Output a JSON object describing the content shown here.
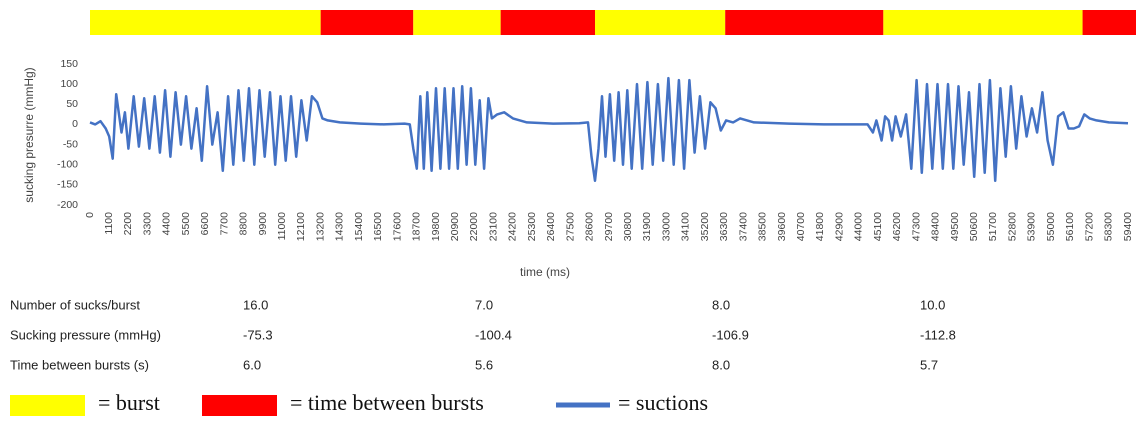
{
  "chart_data": {
    "type": "line",
    "ylabel": "sucking presurre (mmHg)",
    "xlabel": "time (ms)",
    "xlim": [
      0,
      59400
    ],
    "ylim": [
      -200,
      150
    ],
    "yticks": [
      -200,
      -150,
      -100,
      -50,
      0,
      50,
      100,
      150
    ],
    "xticks": [
      0,
      1100,
      2200,
      3300,
      4400,
      5500,
      6600,
      7700,
      8800,
      9900,
      11000,
      12100,
      13200,
      14300,
      15400,
      16500,
      17600,
      18700,
      19800,
      20900,
      22000,
      23100,
      24200,
      25300,
      26400,
      27500,
      28600,
      29700,
      30800,
      31900,
      33000,
      34100,
      35200,
      36300,
      37400,
      38500,
      39600,
      40700,
      41800,
      42900,
      44000,
      45100,
      46200,
      47300,
      48400,
      49500,
      50600,
      51700,
      52800,
      53900,
      55000,
      56100,
      57200,
      58300,
      59400
    ],
    "grid": false,
    "bands": [
      {
        "from": 0,
        "to": 13200,
        "color": "#ffff00"
      },
      {
        "from": 13200,
        "to": 18500,
        "color": "#ff0000"
      },
      {
        "from": 18500,
        "to": 23500,
        "color": "#ffff00"
      },
      {
        "from": 23500,
        "to": 28900,
        "color": "#ff0000"
      },
      {
        "from": 28900,
        "to": 36350,
        "color": "#ffff00"
      },
      {
        "from": 36350,
        "to": 45400,
        "color": "#ff0000"
      },
      {
        "from": 45400,
        "to": 56800,
        "color": "#ffff00"
      },
      {
        "from": 56800,
        "to": 59900,
        "color": "#ff0000"
      }
    ],
    "series": [
      {
        "name": "= suctions",
        "color": "#4472c4",
        "x": [
          0,
          300,
          600,
          900,
          1100,
          1300,
          1500,
          1800,
          2000,
          2200,
          2500,
          2800,
          3100,
          3400,
          3700,
          4000,
          4300,
          4600,
          4900,
          5200,
          5500,
          5800,
          6100,
          6400,
          6700,
          7000,
          7300,
          7600,
          7900,
          8200,
          8500,
          8800,
          9100,
          9400,
          9700,
          10000,
          10300,
          10600,
          10900,
          11200,
          11500,
          11800,
          12100,
          12400,
          12700,
          13000,
          13300,
          13600,
          14300,
          15500,
          16800,
          18000,
          18300,
          18500,
          18700,
          18900,
          19100,
          19300,
          19550,
          19800,
          20050,
          20300,
          20550,
          20800,
          21050,
          21300,
          21550,
          21800,
          22050,
          22300,
          22550,
          22800,
          23000,
          23300,
          23700,
          24200,
          25000,
          26500,
          28000,
          28500,
          28700,
          28900,
          29100,
          29300,
          29500,
          29750,
          30000,
          30250,
          30500,
          30750,
          31000,
          31300,
          31600,
          31900,
          32200,
          32500,
          32800,
          33100,
          33400,
          33700,
          34000,
          34300,
          34600,
          34900,
          35200,
          35500,
          35800,
          36100,
          36400,
          36800,
          37200,
          38000,
          40000,
          42000,
          44500,
          44800,
          45000,
          45300,
          45500,
          45700,
          45900,
          46100,
          46400,
          46700,
          47000,
          47300,
          47600,
          47900,
          48200,
          48500,
          48800,
          49100,
          49400,
          49700,
          50000,
          50300,
          50600,
          50900,
          51200,
          51500,
          51800,
          52100,
          52400,
          52700,
          53000,
          53300,
          53600,
          53900,
          54200,
          54500,
          54800,
          55100,
          55400,
          55700,
          56000,
          56300,
          56600,
          56900,
          57200,
          57600,
          58300,
          59400
        ],
        "values": [
          5,
          0,
          8,
          -10,
          -30,
          -85,
          75,
          -20,
          30,
          -60,
          70,
          -55,
          65,
          -60,
          70,
          -70,
          85,
          -80,
          80,
          -50,
          70,
          -60,
          40,
          -90,
          95,
          -50,
          30,
          -115,
          70,
          -100,
          85,
          -90,
          90,
          -100,
          85,
          -80,
          80,
          -100,
          70,
          -90,
          70,
          -80,
          60,
          -40,
          70,
          55,
          15,
          10,
          5,
          2,
          0,
          2,
          0,
          -60,
          -110,
          70,
          -110,
          80,
          -115,
          90,
          -110,
          90,
          -110,
          90,
          -110,
          95,
          -100,
          90,
          -100,
          60,
          -110,
          65,
          15,
          25,
          30,
          15,
          5,
          2,
          3,
          5,
          -80,
          -140,
          -60,
          70,
          -80,
          75,
          -90,
          80,
          -100,
          85,
          -110,
          100,
          -110,
          105,
          -100,
          100,
          -90,
          115,
          -100,
          110,
          -110,
          110,
          -70,
          70,
          -60,
          55,
          40,
          -15,
          10,
          5,
          15,
          5,
          2,
          0,
          0,
          -20,
          10,
          -40,
          20,
          10,
          -40,
          20,
          -30,
          25,
          -110,
          110,
          -120,
          100,
          -110,
          100,
          -110,
          100,
          -110,
          95,
          -100,
          80,
          -130,
          100,
          -120,
          110,
          -140,
          90,
          -80,
          95,
          -60,
          70,
          -30,
          40,
          -20,
          80,
          -40,
          -100,
          20,
          30,
          -10,
          -10,
          -5,
          25,
          15,
          10,
          5,
          3
        ]
      }
    ]
  },
  "table": {
    "rows": [
      {
        "label": "Number of sucks/burst",
        "cells": [
          "16.0",
          "7.0",
          "8.0",
          "10.0"
        ]
      },
      {
        "label": "Sucking pressure (mmHg)",
        "cells": [
          "-75.3",
          "-100.4",
          "-106.9",
          "-112.8"
        ]
      },
      {
        "label": "Time between bursts (s)",
        "cells": [
          "6.0",
          "5.6",
          "8.0",
          "5.7"
        ]
      }
    ]
  },
  "legend": {
    "items": [
      {
        "label": "= burst",
        "color": "#ffff00"
      },
      {
        "label": "= time between bursts",
        "color": "#ff0000"
      }
    ]
  }
}
